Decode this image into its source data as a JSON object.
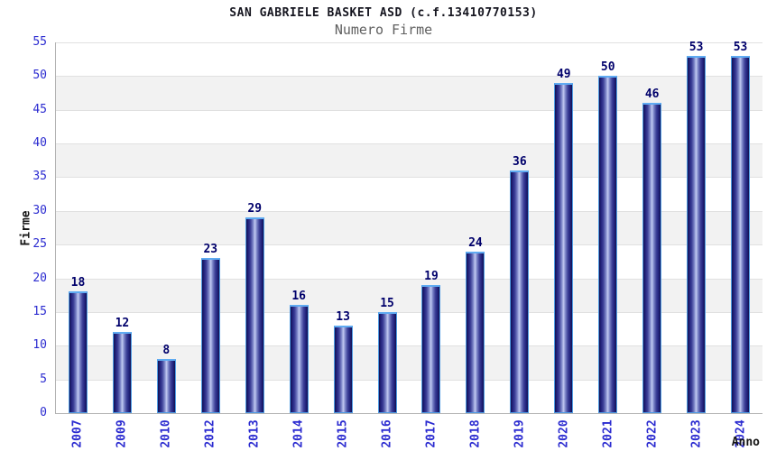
{
  "chart_data": {
    "type": "bar",
    "title": "SAN GABRIELE BASKET ASD (c.f.13410770153)",
    "subtitle": "Numero Firme",
    "categories": [
      "2007",
      "2009",
      "2010",
      "2012",
      "2013",
      "2014",
      "2015",
      "2016",
      "2017",
      "2018",
      "2019",
      "2020",
      "2021",
      "2022",
      "2023",
      "2024"
    ],
    "values": [
      18,
      12,
      8,
      23,
      29,
      16,
      13,
      15,
      19,
      24,
      36,
      49,
      50,
      46,
      53,
      53
    ],
    "xlabel": "Anno",
    "ylabel": "Firme",
    "ylim": [
      0,
      55
    ],
    "ytick_step": 5,
    "yticks": [
      0,
      5,
      10,
      15,
      20,
      25,
      30,
      35,
      40,
      45,
      50,
      55
    ],
    "grid": "horizontal gridlines with alternating shaded bands",
    "legend": "none"
  },
  "colors": {
    "background": "#ffffff",
    "band_gray": "#f2f2f2",
    "band_white": "#ffffff",
    "gridline": "#e0e0e0",
    "axis": "#b3b3b3",
    "tick_label_blue": "#2b2bd0",
    "value_label_navy": "#00006b",
    "bar_dark": "#13134f",
    "bar_light": "#c4cdf2",
    "bar_border": "#4f9ce4",
    "title_color": "#15151f",
    "subtitle_color": "#606060"
  }
}
